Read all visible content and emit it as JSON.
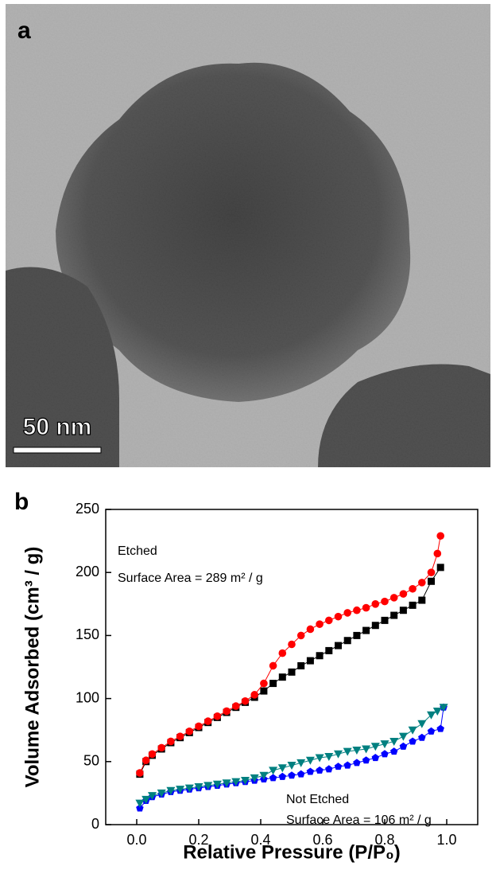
{
  "panel_a": {
    "label": "a",
    "scale_bar": "50 nm"
  },
  "panel_b_label": "b",
  "chart_data": {
    "type": "scatter-line",
    "x_label": "Relative Pressure (P/P₀)",
    "y_label": "Volume Adsorbed (cm³ / g)",
    "annotations": [
      "Etched",
      "Surface Area = 289 m² / g",
      "Not Etched",
      "Surface Area = 106 m² / g"
    ],
    "xlim": [
      -0.1,
      1.1
    ],
    "ylim": [
      0,
      250
    ],
    "xticks": [
      {
        "value": 0,
        "label": "0.0"
      },
      0.2,
      0.4,
      0.6,
      0.8,
      {
        "value": 1,
        "label": "1.0"
      }
    ],
    "yticks": [
      0,
      50,
      100,
      150,
      200,
      250
    ],
    "series": [
      {
        "color": "#000000",
        "marker": "square",
        "x": [
          0.01,
          0.03,
          0.05,
          0.08,
          0.11,
          0.14,
          0.17,
          0.2,
          0.23,
          0.26,
          0.29,
          0.32,
          0.35,
          0.38,
          0.41,
          0.44,
          0.47,
          0.5,
          0.53,
          0.56,
          0.59,
          0.62,
          0.65,
          0.68,
          0.71,
          0.74,
          0.77,
          0.8,
          0.83,
          0.86,
          0.89,
          0.92,
          0.95,
          0.98
        ],
        "values": [
          40,
          50,
          55,
          60,
          65,
          69,
          73,
          77,
          81,
          85,
          89,
          93,
          97,
          101,
          106,
          112,
          117,
          121,
          126,
          130,
          134,
          138,
          142,
          146,
          150,
          154,
          158,
          162,
          166,
          170,
          174,
          178,
          193,
          204
        ]
      },
      {
        "color": "#ff0000",
        "marker": "circle",
        "x": [
          0.01,
          0.03,
          0.05,
          0.08,
          0.11,
          0.14,
          0.17,
          0.2,
          0.23,
          0.26,
          0.29,
          0.32,
          0.35,
          0.38,
          0.41,
          0.44,
          0.47,
          0.5,
          0.53,
          0.56,
          0.59,
          0.62,
          0.65,
          0.68,
          0.71,
          0.74,
          0.77,
          0.8,
          0.83,
          0.86,
          0.89,
          0.92,
          0.95,
          0.97,
          0.98
        ],
        "values": [
          41,
          51,
          56,
          61,
          66,
          70,
          74,
          78,
          82,
          86,
          90,
          94,
          98,
          103,
          112,
          126,
          136,
          143,
          150,
          155,
          159,
          162,
          165,
          168,
          170,
          172,
          175,
          177,
          180,
          183,
          187,
          192,
          200,
          215,
          229
        ]
      },
      {
        "color": "#0000ff",
        "marker": "pentagon",
        "x": [
          0.01,
          0.03,
          0.05,
          0.08,
          0.11,
          0.14,
          0.17,
          0.2,
          0.23,
          0.26,
          0.29,
          0.32,
          0.35,
          0.38,
          0.41,
          0.44,
          0.47,
          0.5,
          0.53,
          0.56,
          0.59,
          0.62,
          0.65,
          0.68,
          0.71,
          0.74,
          0.77,
          0.8,
          0.83,
          0.86,
          0.89,
          0.92,
          0.95,
          0.98,
          0.99
        ],
        "values": [
          13,
          19,
          22,
          24,
          26,
          27,
          28,
          29,
          30,
          31,
          32,
          33,
          34,
          35,
          36,
          37,
          38,
          39,
          40,
          42,
          43,
          44,
          46,
          47,
          49,
          51,
          53,
          56,
          58,
          62,
          66,
          69,
          74,
          76,
          93
        ]
      },
      {
        "color": "#008080",
        "marker": "triangle-down",
        "x": [
          0.01,
          0.03,
          0.05,
          0.08,
          0.11,
          0.14,
          0.17,
          0.2,
          0.23,
          0.26,
          0.29,
          0.32,
          0.35,
          0.38,
          0.41,
          0.44,
          0.47,
          0.5,
          0.53,
          0.56,
          0.59,
          0.62,
          0.65,
          0.68,
          0.71,
          0.74,
          0.77,
          0.8,
          0.83,
          0.86,
          0.89,
          0.92,
          0.95,
          0.97,
          0.99
        ],
        "values": [
          17,
          20,
          23,
          25,
          27,
          28,
          29,
          30,
          31,
          32,
          33,
          34,
          35,
          37,
          39,
          43,
          45,
          47,
          49,
          51,
          53,
          54,
          56,
          58,
          59,
          60,
          62,
          64,
          66,
          70,
          75,
          80,
          87,
          90,
          93
        ]
      }
    ]
  }
}
